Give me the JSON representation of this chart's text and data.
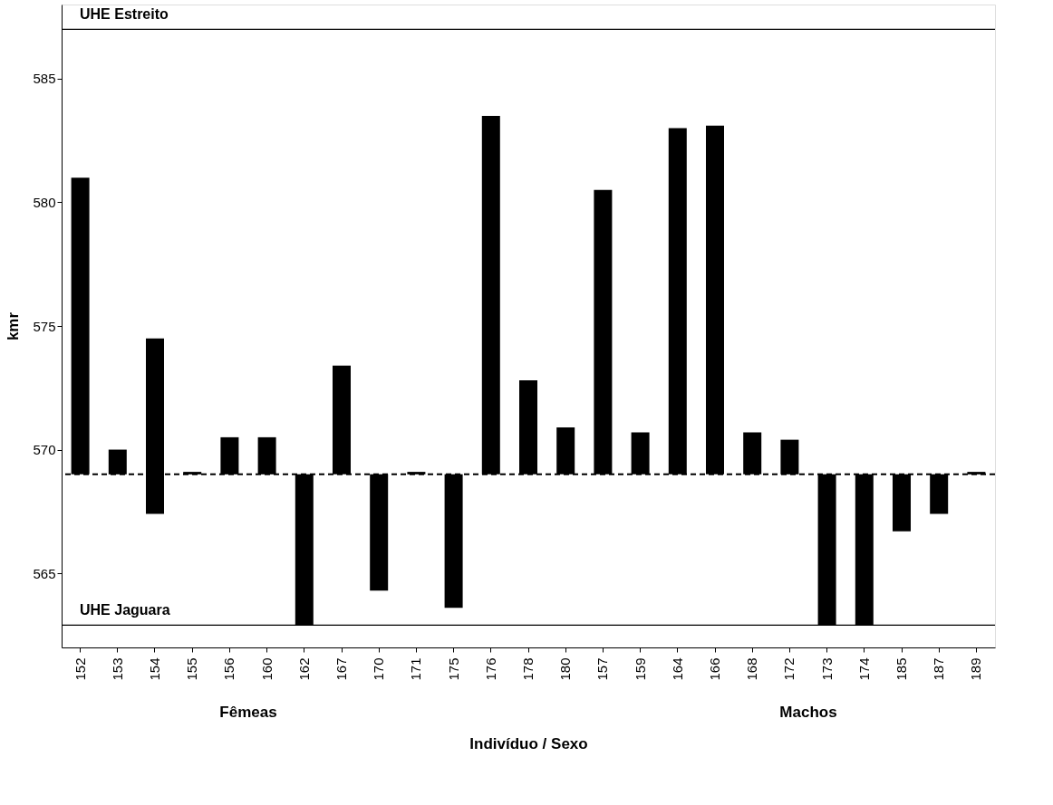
{
  "chart_data": {
    "type": "bar",
    "xlabel": "Indivíduo / Sexo",
    "ylabel": "kmr",
    "categories": [
      "152",
      "153",
      "154",
      "155",
      "156",
      "160",
      "162",
      "167",
      "170",
      "171",
      "175",
      "176",
      "178",
      "180",
      "157",
      "159",
      "164",
      "166",
      "168",
      "172",
      "173",
      "174",
      "185",
      "187",
      "189"
    ],
    "values": [
      12.0,
      1.0,
      7.1,
      0.1,
      1.5,
      1.5,
      -6.1,
      4.4,
      -4.7,
      0.1,
      -5.4,
      14.5,
      3.8,
      1.9,
      11.5,
      1.7,
      14.0,
      14.1,
      1.7,
      1.4,
      -6.1,
      -6.1,
      -2.3,
      -1.6,
      0.1
    ],
    "base": [
      569,
      569,
      567.4,
      569,
      569,
      569,
      569,
      569,
      569,
      569,
      569,
      569,
      569,
      569,
      569,
      569,
      569,
      569,
      569,
      569,
      569,
      569,
      569,
      569,
      569
    ],
    "color": "#000000",
    "ylim": [
      562,
      588
    ],
    "yticks": [
      565,
      570,
      575,
      580,
      585
    ],
    "grid": false,
    "ref_lines": [
      {
        "axis": "y",
        "value": 569,
        "line_style": "dashed"
      },
      {
        "axis": "y",
        "value": 587,
        "label": "UHE Estreito",
        "line_style": "solid"
      },
      {
        "axis": "y",
        "value": 562.9,
        "label": "UHE Jaguara",
        "line_style": "solid"
      }
    ],
    "annotations": [
      "Fêmeas",
      "Machos"
    ]
  }
}
